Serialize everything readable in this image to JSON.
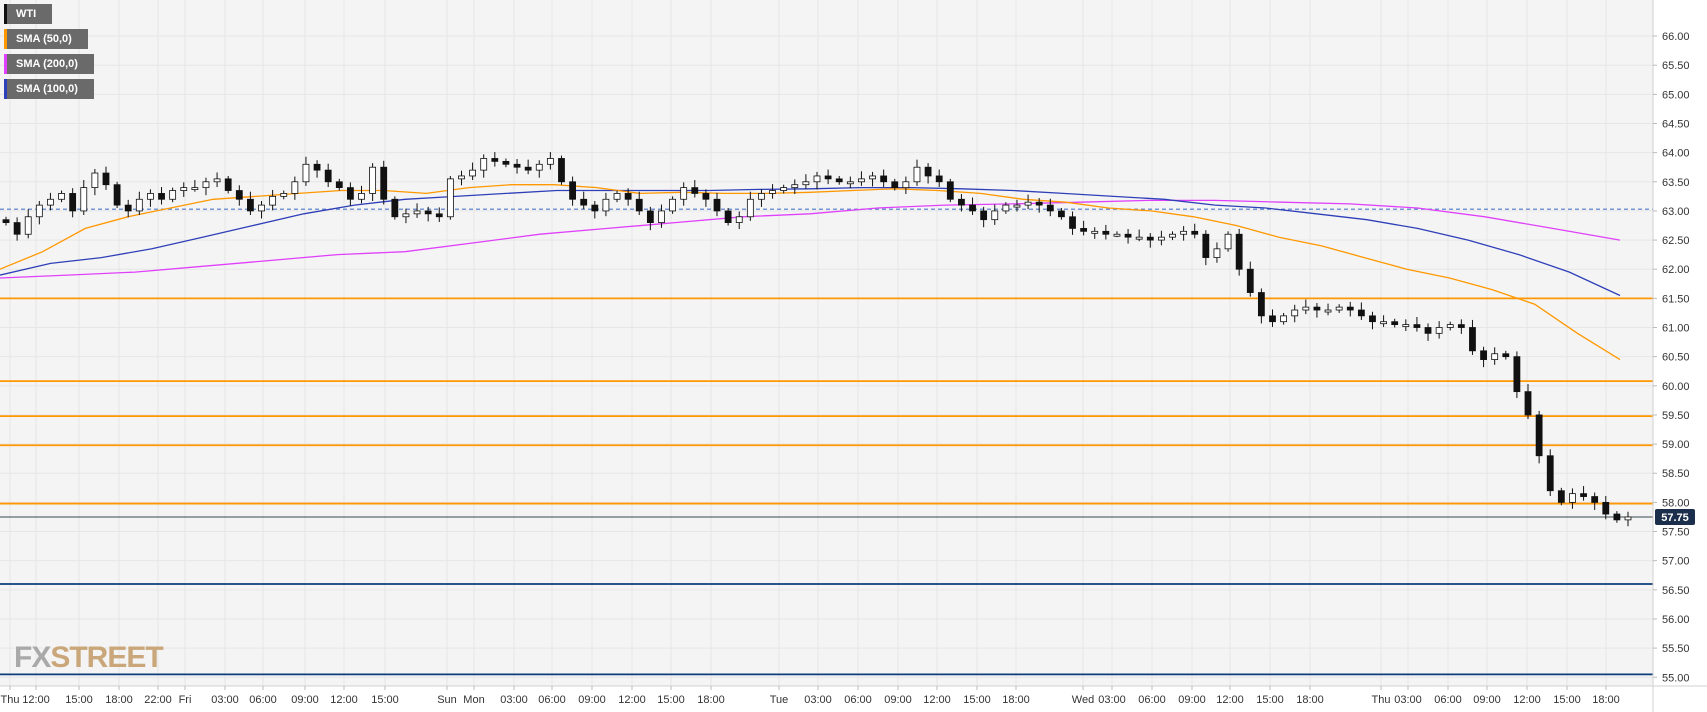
{
  "legend": [
    {
      "label": "WTI",
      "color": "#111111"
    },
    {
      "label": "SMA (50,0)",
      "color": "#ff9800"
    },
    {
      "label": "SMA (200,0)",
      "color": "#e040fb"
    },
    {
      "label": "SMA (100,0)",
      "color": "#2e3fb8"
    }
  ],
  "watermark": {
    "left": "FX",
    "right": "STREET"
  },
  "chart_data": {
    "type": "candlestick",
    "instrument": "WTI",
    "ylim": [
      54.85,
      66.55
    ],
    "y_ticks": [
      "66.00",
      "65.50",
      "65.00",
      "64.50",
      "64.00",
      "63.50",
      "63.00",
      "62.50",
      "62.00",
      "61.50",
      "61.00",
      "60.50",
      "60.00",
      "59.50",
      "59.00",
      "58.50",
      "58.00",
      "57.50",
      "57.00",
      "56.50",
      "56.00",
      "55.50",
      "55.00"
    ],
    "x_ticks": [
      "Thu",
      "12:00",
      "15:00",
      "18:00",
      "22:00",
      "Fri",
      "03:00",
      "06:00",
      "09:00",
      "12:00",
      "15:00",
      "Sun",
      "Mon",
      "03:00",
      "06:00",
      "09:00",
      "12:00",
      "15:00",
      "18:00",
      "Tue",
      "03:00",
      "06:00",
      "09:00",
      "12:00",
      "15:00",
      "18:00",
      "Wed",
      "03:00",
      "06:00",
      "09:00",
      "12:00",
      "15:00",
      "18:00",
      "Thu",
      "03:00",
      "06:00",
      "09:00",
      "12:00",
      "15:00",
      "18:00"
    ],
    "last_price": "57.75",
    "last_price_value": 57.75,
    "dashed_level": 63.03,
    "horizontal_levels": [
      {
        "value": 61.5,
        "color": "#ff9800"
      },
      {
        "value": 60.08,
        "color": "#ff9800"
      },
      {
        "value": 59.48,
        "color": "#ff9800"
      },
      {
        "value": 58.98,
        "color": "#ff9800"
      },
      {
        "value": 57.98,
        "color": "#ff9800"
      },
      {
        "value": 56.6,
        "color": "#0d3c7a"
      },
      {
        "value": 55.05,
        "color": "#0d3c7a"
      }
    ],
    "price_path": [
      62.8,
      62.6,
      62.9,
      63.1,
      63.2,
      63.3,
      63.0,
      63.4,
      63.65,
      63.45,
      63.1,
      63.0,
      63.2,
      63.3,
      63.2,
      63.35,
      63.4,
      63.4,
      63.5,
      63.55,
      63.35,
      63.2,
      63.0,
      63.1,
      63.25,
      63.3,
      63.5,
      63.8,
      63.7,
      63.5,
      63.4,
      63.2,
      63.3,
      63.75,
      63.2,
      62.9,
      62.95,
      63.0,
      62.95,
      62.9,
      63.55,
      63.6,
      63.7,
      63.9,
      63.85,
      63.8,
      63.75,
      63.7,
      63.8,
      63.9,
      63.5,
      63.2,
      63.1,
      63.0,
      63.2,
      63.3,
      63.2,
      63.0,
      62.8,
      63.0,
      63.2,
      63.4,
      63.3,
      63.2,
      63.0,
      62.8,
      62.9,
      63.2,
      63.3,
      63.35,
      63.4,
      63.45,
      63.5,
      63.6,
      63.55,
      63.5,
      63.5,
      63.55,
      63.6,
      63.5,
      63.4,
      63.5,
      63.75,
      63.6,
      63.5,
      63.2,
      63.1,
      63.0,
      62.85,
      63.0,
      63.1,
      63.1,
      63.15,
      63.1,
      63.0,
      62.9,
      62.7,
      62.65,
      62.65,
      62.6,
      62.6,
      62.55,
      62.55,
      62.5,
      62.55,
      62.6,
      62.65,
      62.6,
      62.2,
      62.35,
      62.6,
      62.0,
      61.6,
      61.2,
      61.1,
      61.2,
      61.3,
      61.35,
      61.3,
      61.3,
      61.35,
      61.3,
      61.2,
      61.1,
      61.1,
      61.05,
      61.05,
      61.0,
      60.9,
      61.0,
      61.05,
      61.0,
      60.6,
      60.45,
      60.55,
      60.5,
      59.9,
      59.5,
      58.8,
      58.2,
      58.0,
      58.15,
      58.1,
      58.0,
      57.8,
      57.7,
      57.75
    ],
    "sma50_path": [
      62.0,
      62.3,
      62.7,
      62.9,
      63.05,
      63.2,
      63.25,
      63.3,
      63.35,
      63.35,
      63.3,
      63.4,
      63.45,
      63.45,
      63.4,
      63.3,
      63.32,
      63.3,
      63.3,
      63.32,
      63.35,
      63.38,
      63.35,
      63.3,
      63.2,
      63.15,
      63.05,
      63.0,
      62.9,
      62.75,
      62.55,
      62.4,
      62.2,
      62.0,
      61.85,
      61.65,
      61.4,
      60.9,
      60.45
    ],
    "sma100_path": [
      61.9,
      62.1,
      62.2,
      62.35,
      62.55,
      62.75,
      62.95,
      63.1,
      63.2,
      63.25,
      63.3,
      63.35,
      63.35,
      63.35,
      63.35,
      63.37,
      63.38,
      63.4,
      63.4,
      63.38,
      63.35,
      63.3,
      63.25,
      63.2,
      63.1,
      63.05,
      62.95,
      62.85,
      62.7,
      62.5,
      62.25,
      61.95,
      61.55
    ],
    "sma200_path": [
      61.85,
      61.9,
      61.95,
      62.05,
      62.15,
      62.25,
      62.3,
      62.45,
      62.6,
      62.7,
      62.8,
      62.9,
      62.95,
      63.05,
      63.1,
      63.12,
      63.15,
      63.18,
      63.18,
      63.15,
      63.12,
      63.05,
      62.9,
      62.7,
      62.5
    ]
  }
}
